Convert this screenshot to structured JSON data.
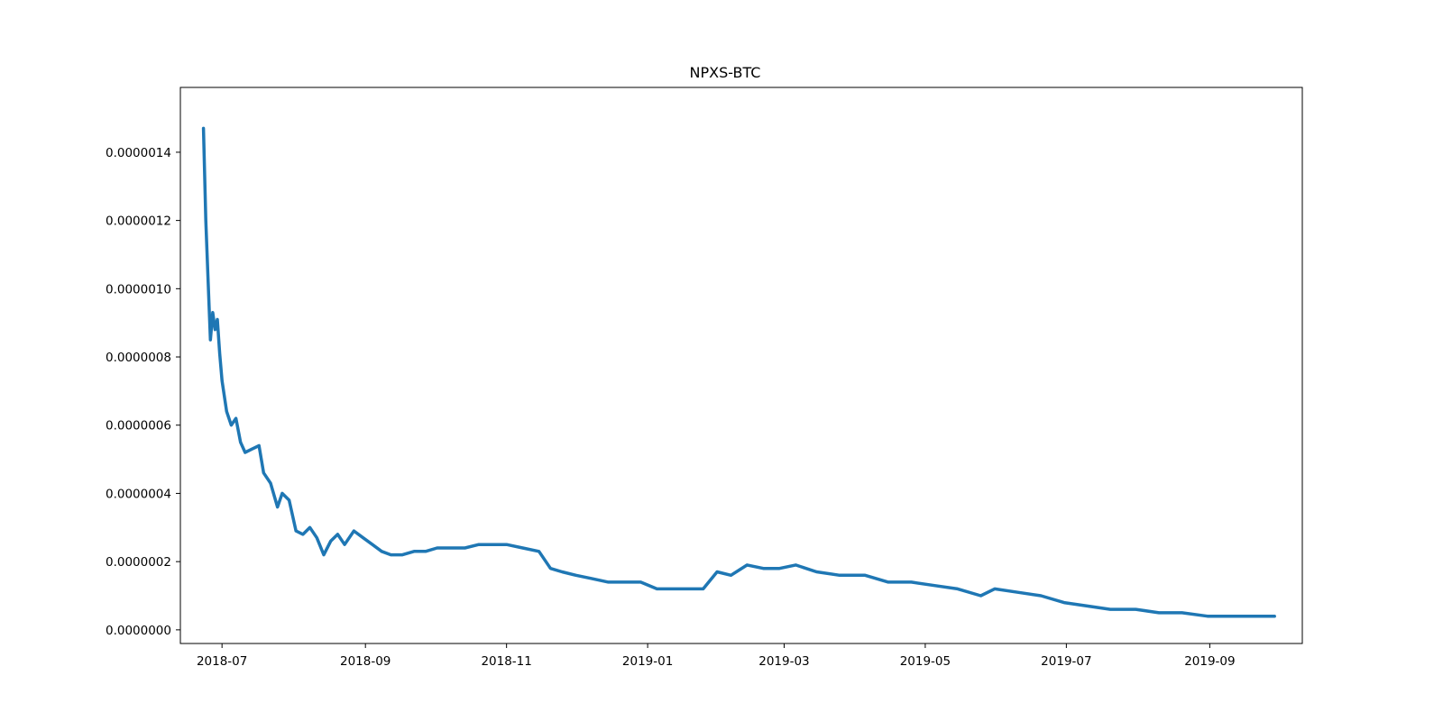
{
  "chart_data": {
    "type": "line",
    "title": "NPXS-BTC",
    "xlabel": "",
    "ylabel": "",
    "x_type": "date",
    "xlim": [
      "2018-06-13",
      "2019-10-11"
    ],
    "ylim": [
      -4e-08,
      1.59e-06
    ],
    "x_ticks": [
      "2018-07",
      "2018-09",
      "2018-11",
      "2019-01",
      "2019-03",
      "2019-05",
      "2019-07",
      "2019-09"
    ],
    "x_tick_values": [
      "2018-07-01",
      "2018-09-01",
      "2018-11-01",
      "2019-01-01",
      "2019-03-01",
      "2019-05-01",
      "2019-07-01",
      "2019-09-01"
    ],
    "y_ticks": [
      "0.0000000",
      "0.0000002",
      "0.0000004",
      "0.0000006",
      "0.0000008",
      "0.0000010",
      "0.0000012",
      "0.0000014"
    ],
    "y_tick_values": [
      0,
      2e-07,
      4e-07,
      6e-07,
      8e-07,
      1e-06,
      1.2e-06,
      1.4e-06
    ],
    "grid": false,
    "series": [
      {
        "color": "#1f77b4",
        "x": [
          "2018-06-23",
          "2018-06-24",
          "2018-06-25",
          "2018-06-26",
          "2018-06-27",
          "2018-06-28",
          "2018-06-29",
          "2018-06-30",
          "2018-07-01",
          "2018-07-03",
          "2018-07-05",
          "2018-07-07",
          "2018-07-09",
          "2018-07-11",
          "2018-07-14",
          "2018-07-17",
          "2018-07-19",
          "2018-07-22",
          "2018-07-25",
          "2018-07-27",
          "2018-07-30",
          "2018-08-02",
          "2018-08-05",
          "2018-08-08",
          "2018-08-11",
          "2018-08-14",
          "2018-08-17",
          "2018-08-20",
          "2018-08-23",
          "2018-08-27",
          "2018-08-31",
          "2018-09-04",
          "2018-09-08",
          "2018-09-12",
          "2018-09-17",
          "2018-09-22",
          "2018-09-27",
          "2018-10-02",
          "2018-10-08",
          "2018-10-14",
          "2018-10-20",
          "2018-10-26",
          "2018-11-01",
          "2018-11-08",
          "2018-11-15",
          "2018-11-20",
          "2018-11-25",
          "2018-12-01",
          "2018-12-08",
          "2018-12-15",
          "2018-12-22",
          "2018-12-29",
          "2019-01-05",
          "2019-01-12",
          "2019-01-19",
          "2019-01-25",
          "2019-01-31",
          "2019-02-06",
          "2019-02-13",
          "2019-02-20",
          "2019-02-27",
          "2019-03-06",
          "2019-03-15",
          "2019-03-25",
          "2019-04-05",
          "2019-04-15",
          "2019-04-25",
          "2019-05-05",
          "2019-05-15",
          "2019-05-25",
          "2019-05-31",
          "2019-06-10",
          "2019-06-20",
          "2019-06-30",
          "2019-07-10",
          "2019-07-20",
          "2019-07-31",
          "2019-08-10",
          "2019-08-20",
          "2019-08-31",
          "2019-09-05",
          "2019-09-15",
          "2019-09-29"
        ],
        "values": [
          1.47e-06,
          1.2e-06,
          1.02e-06,
          8.5e-07,
          9.3e-07,
          8.8e-07,
          9.1e-07,
          8.1e-07,
          7.3e-07,
          6.4e-07,
          6e-07,
          6.2e-07,
          5.5e-07,
          5.2e-07,
          5.3e-07,
          5.4e-07,
          4.6e-07,
          4.3e-07,
          3.6e-07,
          4e-07,
          3.8e-07,
          2.9e-07,
          2.8e-07,
          3e-07,
          2.7e-07,
          2.2e-07,
          2.6e-07,
          2.8e-07,
          2.5e-07,
          2.9e-07,
          2.7e-07,
          2.5e-07,
          2.3e-07,
          2.2e-07,
          2.2e-07,
          2.3e-07,
          2.3e-07,
          2.4e-07,
          2.4e-07,
          2.4e-07,
          2.5e-07,
          2.5e-07,
          2.5e-07,
          2.4e-07,
          2.3e-07,
          1.8e-07,
          1.7e-07,
          1.6e-07,
          1.5e-07,
          1.4e-07,
          1.4e-07,
          1.4e-07,
          1.2e-07,
          1.2e-07,
          1.2e-07,
          1.2e-07,
          1.7e-07,
          1.6e-07,
          1.9e-07,
          1.8e-07,
          1.8e-07,
          1.9e-07,
          1.7e-07,
          1.6e-07,
          1.6e-07,
          1.4e-07,
          1.4e-07,
          1.3e-07,
          1.2e-07,
          1e-07,
          1.2e-07,
          1.1e-07,
          1e-07,
          8e-08,
          7e-08,
          6e-08,
          6e-08,
          5e-08,
          5e-08,
          4e-08,
          4e-08,
          4e-08,
          4e-08
        ]
      }
    ]
  }
}
